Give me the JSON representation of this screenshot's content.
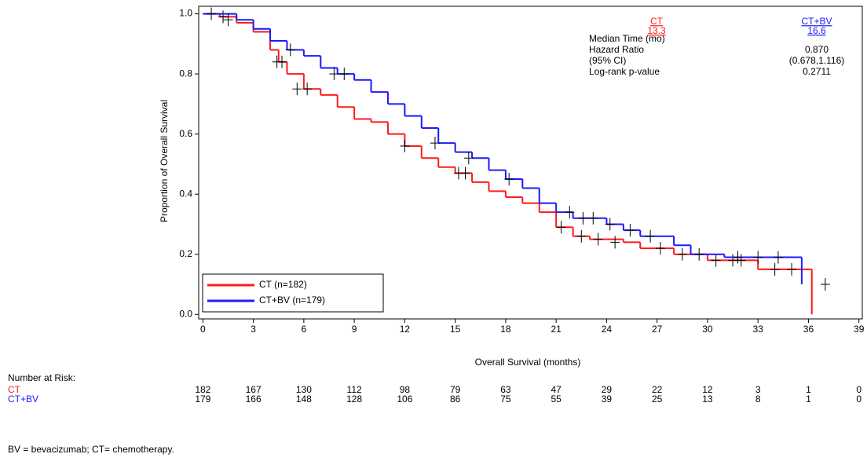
{
  "chart_data": {
    "type": "kaplan-meier",
    "ylabel": "Proportion of Overall Survival",
    "xlabel": "Overall Survival (months)",
    "xlim": [
      -0.25,
      39.2
    ],
    "ylim": [
      -0.015,
      1.025
    ],
    "xticks": [
      0,
      3,
      6,
      9,
      12,
      15,
      18,
      21,
      24,
      27,
      30,
      33,
      36,
      39
    ],
    "yticks": [
      {
        "value": 0,
        "label": "0.0"
      },
      {
        "value": 0.2,
        "label": "0.2"
      },
      {
        "value": 0.4,
        "label": "0.4"
      },
      {
        "value": 0.6,
        "label": "0.6"
      },
      {
        "value": 0.8,
        "label": "0.8"
      },
      {
        "value": 1,
        "label": "1.0"
      }
    ],
    "legend": "lower left",
    "series": [
      {
        "name": "CT (n=182)",
        "color": "#ff1a1a",
        "x": [
          0,
          1,
          2,
          3,
          4,
          4.5,
          5,
          6,
          7,
          8,
          9,
          10,
          11,
          12,
          13,
          14,
          15,
          16,
          17,
          18,
          19,
          20,
          21,
          22,
          23,
          25,
          26,
          28,
          30,
          33,
          36.2
        ],
        "values": [
          1.0,
          0.99,
          0.97,
          0.94,
          0.88,
          0.84,
          0.8,
          0.75,
          0.73,
          0.69,
          0.65,
          0.64,
          0.6,
          0.56,
          0.52,
          0.49,
          0.47,
          0.44,
          0.41,
          0.39,
          0.37,
          0.34,
          0.29,
          0.26,
          0.25,
          0.24,
          0.22,
          0.2,
          0.18,
          0.15,
          0.0
        ],
        "censored": {
          "x": [
            1.2,
            4.4,
            4.7,
            5.6,
            6.2,
            12,
            15.2,
            15.6,
            21.3,
            22.5,
            23.5,
            24.5,
            27.2,
            28.5,
            30.5,
            31.5,
            32,
            34,
            35
          ],
          "values": [
            0.99,
            0.84,
            0.84,
            0.75,
            0.75,
            0.56,
            0.47,
            0.47,
            0.29,
            0.26,
            0.25,
            0.24,
            0.22,
            0.2,
            0.18,
            0.18,
            0.18,
            0.15,
            0.15
          ]
        }
      },
      {
        "name": "CT+BV (n=179)",
        "color": "#1a1aff",
        "x": [
          0,
          2,
          3,
          4,
          5,
          6,
          7,
          8,
          9,
          10,
          11,
          12,
          13,
          14,
          15,
          16,
          17,
          18,
          19,
          20,
          21,
          22,
          24,
          25,
          26,
          28,
          29,
          31,
          35.6
        ],
        "values": [
          1.0,
          0.98,
          0.95,
          0.91,
          0.88,
          0.86,
          0.82,
          0.8,
          0.78,
          0.74,
          0.7,
          0.66,
          0.62,
          0.57,
          0.54,
          0.52,
          0.48,
          0.45,
          0.42,
          0.37,
          0.34,
          0.32,
          0.3,
          0.28,
          0.26,
          0.23,
          0.2,
          0.19,
          0.1
        ],
        "censored": {
          "x": [
            0.5,
            1.5,
            5.2,
            7.8,
            8.4,
            13.8,
            15.8,
            18.2,
            21.8,
            22.6,
            23.2,
            24.2,
            25.4,
            26.6,
            29.5,
            31.8,
            33,
            34.2,
            37
          ],
          "values": [
            1.0,
            0.98,
            0.88,
            0.8,
            0.8,
            0.57,
            0.52,
            0.45,
            0.34,
            0.32,
            0.32,
            0.3,
            0.28,
            0.26,
            0.2,
            0.19,
            0.19,
            0.19,
            0.1
          ]
        }
      }
    ],
    "stats": {
      "headers": [
        "CT",
        "CT+BV"
      ],
      "rows": [
        {
          "label": "Median Time (mo)",
          "values": [
            "13.3",
            "16.6"
          ]
        },
        {
          "label": "Hazard Ratio",
          "values": [
            "0.870"
          ]
        },
        {
          "label": "(95% CI)",
          "values": [
            "(0.678,1.116)"
          ]
        },
        {
          "label": "Log-rank p-value",
          "values": [
            "0.2711"
          ]
        }
      ]
    },
    "risk_table": {
      "title": "Number at Risk:",
      "rows": [
        {
          "label": "CT",
          "color": "#ff1a1a",
          "values": [
            182,
            167,
            130,
            112,
            98,
            79,
            63,
            47,
            29,
            22,
            12,
            3,
            1,
            0
          ]
        },
        {
          "label": "CT+BV",
          "color": "#1a1aff",
          "values": [
            179,
            166,
            148,
            128,
            106,
            86,
            75,
            55,
            39,
            25,
            13,
            8,
            1,
            0
          ]
        }
      ]
    },
    "footnote": "BV = bevacizumab; CT= chemotherapy."
  }
}
